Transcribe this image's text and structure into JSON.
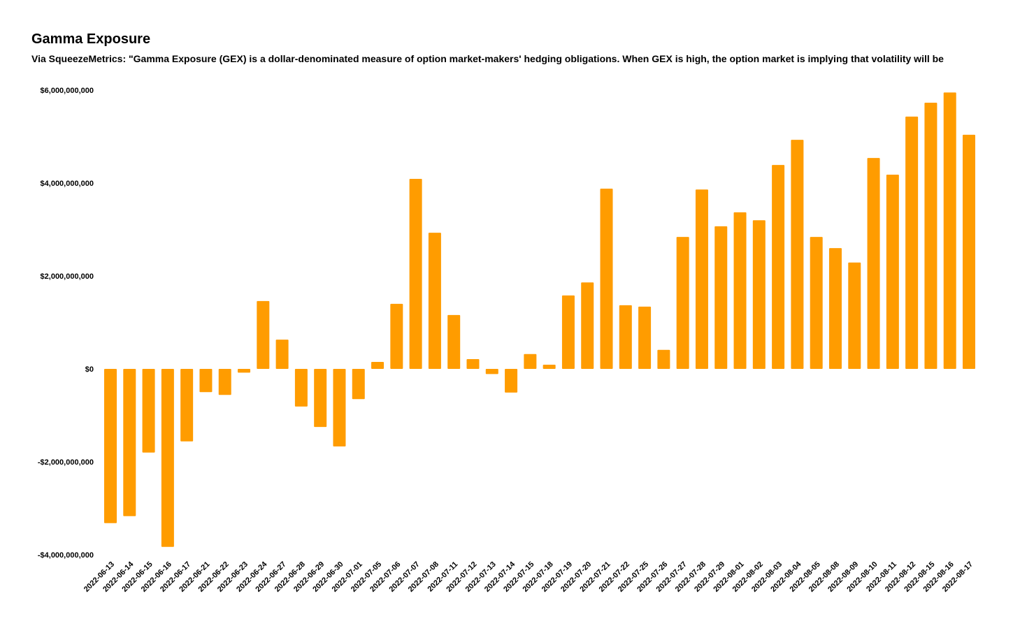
{
  "chart_data": {
    "type": "bar",
    "title": "Gamma Exposure",
    "subtitle": "Via SqueezeMetrics: \"Gamma Exposure (GEX) is a dollar-denominated measure of option market-makers' hedging obligations. When GEX is high, the option market is implying that volatility will be",
    "xlabel": "",
    "ylabel": "",
    "ylim": [
      -4000000000,
      6000000000
    ],
    "yticks": [
      -4000000000,
      -2000000000,
      0,
      2000000000,
      4000000000,
      6000000000
    ],
    "ytick_labels": [
      "-$4,000,000,000",
      "-$2,000,000,000",
      "$0",
      "$2,000,000,000",
      "$4,000,000,000",
      "$6,000,000,000"
    ],
    "grid": false,
    "bar_color": "#FF9C00",
    "categories": [
      "2022-06-13",
      "2022-06-14",
      "2022-06-15",
      "2022-06-16",
      "2022-06-17",
      "2022-06-21",
      "2022-06-22",
      "2022-06-23",
      "2022-06-24",
      "2022-06-27",
      "2022-06-28",
      "2022-06-29",
      "2022-06-30",
      "2022-07-01",
      "2022-07-05",
      "2022-07-06",
      "2022-07-07",
      "2022-07-08",
      "2022-07-11",
      "2022-07-12",
      "2022-07-13",
      "2022-07-14",
      "2022-07-15",
      "2022-07-18",
      "2022-07-19",
      "2022-07-20",
      "2022-07-21",
      "2022-07-22",
      "2022-07-25",
      "2022-07-26",
      "2022-07-27",
      "2022-07-28",
      "2022-07-29",
      "2022-08-01",
      "2022-08-02",
      "2022-08-03",
      "2022-08-04",
      "2022-08-05",
      "2022-08-08",
      "2022-08-09",
      "2022-08-10",
      "2022-08-11",
      "2022-08-12",
      "2022-08-15",
      "2022-08-16",
      "2022-08-17"
    ],
    "values": [
      -3320000000,
      -3170000000,
      -1800000000,
      -3830000000,
      -1560000000,
      -500000000,
      -560000000,
      -80000000,
      1460000000,
      630000000,
      -810000000,
      -1250000000,
      -1670000000,
      -650000000,
      150000000,
      1400000000,
      4090000000,
      2930000000,
      1160000000,
      210000000,
      -110000000,
      -510000000,
      320000000,
      90000000,
      1580000000,
      1860000000,
      3880000000,
      1370000000,
      1340000000,
      410000000,
      2840000000,
      3860000000,
      3070000000,
      3370000000,
      3200000000,
      4390000000,
      4930000000,
      2840000000,
      2600000000,
      2290000000,
      4540000000,
      4180000000,
      5430000000,
      5730000000,
      5950000000,
      5040000000
    ]
  }
}
